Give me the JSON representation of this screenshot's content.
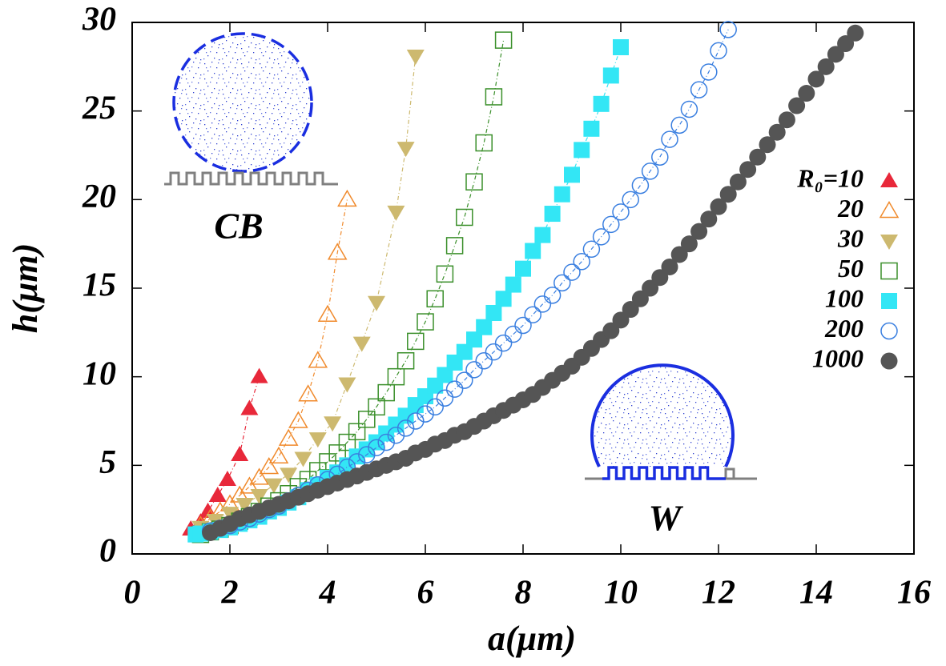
{
  "chart_data": {
    "type": "scatter",
    "xlabel": "a(μm)",
    "ylabel": "h(μm)",
    "xlim": [
      0,
      16
    ],
    "ylim": [
      0,
      30
    ],
    "xticks": [
      0,
      2,
      4,
      6,
      8,
      10,
      12,
      14,
      16
    ],
    "yticks": [
      0,
      5,
      10,
      15,
      20,
      25,
      30
    ],
    "legend": "right",
    "annotations": [
      "CB",
      "W"
    ],
    "series": [
      {
        "name": "R₀=10",
        "color": "#e8283a",
        "marker": "triangle-up",
        "filled": true,
        "x": [
          1.2,
          1.4,
          1.55,
          1.75,
          1.95,
          2.2,
          2.4,
          2.6
        ],
        "values": [
          1.4,
          1.8,
          2.4,
          3.3,
          4.2,
          5.6,
          8.2,
          10.0
        ]
      },
      {
        "name": "20",
        "color": "#f08a2c",
        "marker": "triangle-up",
        "filled": false,
        "x": [
          1.4,
          1.6,
          1.8,
          2.0,
          2.2,
          2.4,
          2.6,
          2.8,
          3.0,
          3.2,
          3.4,
          3.6,
          3.8,
          4.0,
          4.2,
          4.4
        ],
        "values": [
          1.6,
          2.0,
          2.4,
          2.8,
          3.3,
          3.8,
          4.3,
          4.9,
          5.5,
          6.5,
          7.5,
          9.0,
          10.9,
          13.5,
          17.0,
          20.0
        ]
      },
      {
        "name": "30",
        "color": "#cdb96f",
        "marker": "triangle-down",
        "filled": true,
        "x": [
          1.4,
          1.7,
          2.0,
          2.3,
          2.6,
          2.9,
          3.2,
          3.5,
          3.8,
          4.1,
          4.4,
          4.7,
          5.0,
          5.4,
          5.6,
          5.8
        ],
        "values": [
          1.5,
          1.9,
          2.3,
          2.8,
          3.3,
          3.9,
          4.5,
          5.4,
          6.5,
          7.4,
          9.6,
          11.9,
          14.2,
          19.3,
          22.9,
          28.1
        ]
      },
      {
        "name": "50",
        "color": "#3a8f2a",
        "marker": "square",
        "filled": false,
        "x": [
          1.4,
          1.6,
          1.8,
          2.0,
          2.2,
          2.4,
          2.6,
          2.8,
          3.0,
          3.2,
          3.4,
          3.6,
          3.8,
          4.0,
          4.2,
          4.4,
          4.6,
          4.8,
          5.0,
          5.2,
          5.4,
          5.6,
          5.8,
          6.0,
          6.2,
          6.4,
          6.6,
          6.8,
          7.0,
          7.2,
          7.4,
          7.6
        ],
        "values": [
          1.1,
          1.25,
          1.4,
          1.6,
          1.85,
          2.1,
          2.4,
          2.7,
          3.0,
          3.4,
          3.8,
          4.2,
          4.7,
          5.2,
          5.7,
          6.3,
          6.9,
          7.6,
          8.3,
          9.1,
          10.0,
          10.9,
          12.0,
          13.1,
          14.4,
          15.8,
          17.4,
          19.0,
          21.0,
          23.2,
          25.8,
          29.0
        ]
      },
      {
        "name": "100",
        "color": "#33e6f5",
        "marker": "square",
        "filled": true,
        "x": [
          1.3,
          1.4,
          1.6,
          1.8,
          2.0,
          2.2,
          2.4,
          2.6,
          2.8,
          3.0,
          3.2,
          3.4,
          3.6,
          3.8,
          4.0,
          4.2,
          4.4,
          4.6,
          4.8,
          5.0,
          5.2,
          5.4,
          5.6,
          5.8,
          6.0,
          6.2,
          6.4,
          6.6,
          6.8,
          7.0,
          7.2,
          7.4,
          7.6,
          7.8,
          8.0,
          8.2,
          8.4,
          8.6,
          8.8,
          9.0,
          9.2,
          9.4,
          9.6,
          9.8,
          10.0
        ],
        "values": [
          1.1,
          1.15,
          1.25,
          1.35,
          1.5,
          1.7,
          1.9,
          2.1,
          2.4,
          2.6,
          2.9,
          3.2,
          3.6,
          3.9,
          4.3,
          4.6,
          5.0,
          5.5,
          5.9,
          6.3,
          6.8,
          7.3,
          7.8,
          8.4,
          8.9,
          9.5,
          10.1,
          10.8,
          11.4,
          12.1,
          12.8,
          13.6,
          14.4,
          15.2,
          16.1,
          17.1,
          18.0,
          19.2,
          20.3,
          21.4,
          22.8,
          24.0,
          25.4,
          27.0,
          28.6
        ]
      },
      {
        "name": "200",
        "color": "#3a7fe0",
        "marker": "circle",
        "filled": false,
        "x": [
          1.6,
          1.8,
          2.0,
          2.2,
          2.4,
          2.6,
          2.8,
          3.0,
          3.2,
          3.4,
          3.6,
          3.8,
          4.0,
          4.2,
          4.4,
          4.6,
          4.8,
          5.0,
          5.2,
          5.4,
          5.6,
          5.8,
          6.0,
          6.2,
          6.4,
          6.6,
          6.8,
          7.0,
          7.2,
          7.4,
          7.6,
          7.8,
          8.0,
          8.2,
          8.4,
          8.6,
          8.8,
          9.0,
          9.2,
          9.4,
          9.6,
          9.8,
          10.0,
          10.2,
          10.4,
          10.6,
          10.8,
          11.0,
          11.2,
          11.4,
          11.6,
          11.8,
          12.0,
          12.2
        ],
        "values": [
          1.3,
          1.45,
          1.6,
          1.8,
          2.0,
          2.25,
          2.5,
          2.7,
          3.0,
          3.3,
          3.6,
          3.9,
          4.2,
          4.5,
          4.9,
          5.2,
          5.6,
          6.0,
          6.3,
          6.7,
          7.1,
          7.5,
          7.9,
          8.3,
          8.8,
          9.3,
          9.8,
          10.4,
          10.9,
          11.4,
          11.9,
          12.4,
          12.9,
          13.5,
          14.1,
          14.6,
          15.3,
          15.9,
          16.5,
          17.2,
          17.9,
          18.6,
          19.3,
          20.0,
          20.8,
          21.6,
          22.4,
          23.4,
          24.2,
          25.1,
          26.2,
          27.2,
          28.4,
          29.6
        ]
      },
      {
        "name": "1000",
        "color": "#555555",
        "marker": "circle",
        "filled": true,
        "x": [
          1.6,
          1.8,
          2.0,
          2.2,
          2.4,
          2.6,
          2.8,
          3.0,
          3.2,
          3.4,
          3.6,
          3.8,
          4.0,
          4.2,
          4.4,
          4.6,
          4.8,
          5.0,
          5.2,
          5.4,
          5.6,
          5.8,
          6.0,
          6.2,
          6.4,
          6.6,
          6.8,
          7.0,
          7.2,
          7.4,
          7.6,
          7.8,
          8.0,
          8.2,
          8.4,
          8.6,
          8.8,
          9.0,
          9.2,
          9.4,
          9.6,
          9.8,
          10.0,
          10.2,
          10.4,
          10.6,
          10.8,
          11.0,
          11.2,
          11.4,
          11.6,
          11.8,
          12.0,
          12.2,
          12.4,
          12.6,
          12.8,
          13.0,
          13.2,
          13.4,
          13.6,
          13.8,
          14.0,
          14.2,
          14.4,
          14.6,
          14.8
        ],
        "values": [
          1.2,
          1.45,
          1.7,
          2.0,
          2.2,
          2.4,
          2.6,
          2.8,
          3.0,
          3.2,
          3.4,
          3.6,
          3.8,
          4.0,
          4.2,
          4.4,
          4.6,
          4.8,
          5.0,
          5.2,
          5.4,
          5.7,
          5.9,
          6.2,
          6.4,
          6.7,
          6.9,
          7.2,
          7.5,
          7.8,
          8.1,
          8.4,
          8.7,
          9.0,
          9.4,
          9.8,
          10.2,
          10.6,
          11.1,
          11.6,
          12.1,
          12.6,
          13.2,
          13.8,
          14.4,
          15.0,
          15.6,
          16.2,
          16.9,
          17.5,
          18.2,
          18.9,
          19.6,
          20.3,
          21.0,
          21.7,
          22.4,
          23.1,
          23.8,
          24.5,
          25.3,
          26.0,
          26.8,
          27.5,
          28.2,
          28.8,
          29.4
        ]
      }
    ]
  }
}
